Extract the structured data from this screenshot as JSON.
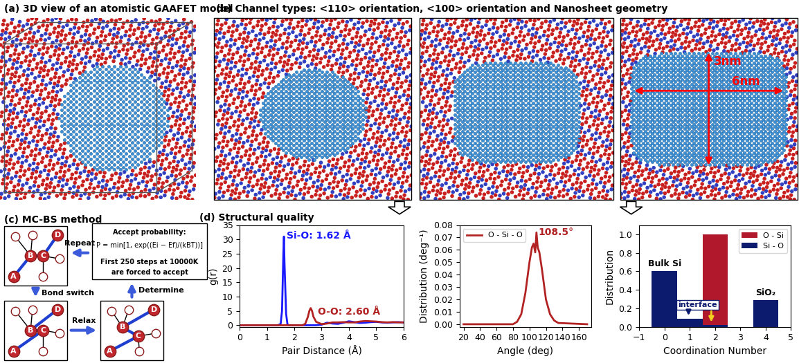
{
  "panels": {
    "a": {
      "title": "(a) 3D view of an atomistic GAAFET model"
    },
    "b": {
      "title": "(b) Channel types: <110> orientation, <100> orientation and Nanosheet geometry",
      "height": "3nm",
      "width": "6nm"
    },
    "c": {
      "title": "(c) MC-BS method",
      "atoms": [
        "A",
        "B",
        "C",
        "D"
      ],
      "steps": [
        "Repeat",
        "Bond switch",
        "Relax",
        "Determine"
      ],
      "rule": [
        "Accept probability:",
        "P = min[1, exp((Ei − Ef)/(kBT))]",
        "First 250 steps at 10000K",
        "are forced to accept"
      ]
    },
    "d": {
      "title": "(d) Structural quality"
    }
  },
  "chart_data": [
    {
      "type": "line",
      "xlabel": "Pair Distance (Å)",
      "ylabel": "g(r)",
      "x": [
        0,
        1.0,
        1.4,
        1.5,
        1.55,
        1.6,
        1.62,
        1.64,
        1.7,
        1.75,
        1.8,
        2.0,
        2.3,
        2.4,
        2.5,
        2.55,
        2.6,
        2.65,
        2.7,
        2.8,
        3.0,
        3.2,
        3.4,
        3.6,
        3.8,
        4.0,
        4.2,
        4.4,
        4.6,
        4.8,
        5.0,
        5.2,
        5.4,
        5.6,
        5.8,
        6.0
      ],
      "series": [
        {
          "color": "#1a1aff",
          "values": [
            0,
            0,
            0,
            0.5,
            5,
            25,
            31,
            22,
            4,
            0.3,
            0,
            0,
            0,
            0,
            0,
            0,
            0,
            0,
            0,
            0,
            0.2,
            0.9,
            0.6,
            0.5,
            0.9,
            1.4,
            1.1,
            0.8,
            0.9,
            1.1,
            1.2,
            1.0,
            0.9,
            1.0,
            1.1,
            1.0
          ]
        },
        {
          "color": "#b22222",
          "values": [
            0,
            0,
            0,
            0,
            0,
            0,
            0,
            0,
            0,
            0,
            0,
            0,
            0,
            0.5,
            3,
            5,
            6,
            5,
            3,
            1.2,
            0.4,
            0.6,
            1.0,
            1.0,
            1.1,
            1.0,
            1.0,
            1.3,
            1.5,
            1.4,
            1.3,
            1.1,
            1.0,
            1.1,
            1.0,
            1.0
          ]
        }
      ],
      "annotations": [
        "Si-O: 1.62 Å",
        "O-O: 2.60 Å"
      ],
      "xlim": [
        0,
        6
      ],
      "ylim": [
        -0.5,
        35
      ],
      "xticks": [
        0,
        1,
        2,
        3,
        4,
        5,
        6
      ],
      "yticks": [
        0,
        5,
        10,
        15,
        20,
        25,
        30,
        35
      ]
    },
    {
      "type": "line",
      "xlabel": "Angle (deg)",
      "ylabel": "Distribution (deg⁻¹)",
      "x": [
        20,
        80,
        85,
        90,
        95,
        100,
        103,
        105,
        107,
        108.5,
        110,
        112,
        115,
        118,
        120,
        125,
        130,
        135,
        170
      ],
      "series": [
        {
          "name": "O - Si - O",
          "color": "#b22222",
          "values": [
            0,
            0,
            0.002,
            0.008,
            0.025,
            0.05,
            0.062,
            0.065,
            0.058,
            0.074,
            0.062,
            0.058,
            0.045,
            0.03,
            0.02,
            0.008,
            0.003,
            0.001,
            0
          ]
        }
      ],
      "legend": "upper left",
      "annotations": [
        "108.5°"
      ],
      "xlim": [
        15,
        175
      ],
      "ylim": [
        -0.002,
        0.08
      ],
      "xticks": [
        20,
        40,
        60,
        80,
        100,
        120,
        140,
        160
      ],
      "yticks": [
        {
          "value": 0,
          "label": "0.00"
        },
        {
          "value": 0.01,
          "label": "0.01"
        },
        {
          "value": 0.02,
          "label": "0.02"
        },
        {
          "value": 0.03,
          "label": "0.03"
        },
        {
          "value": 0.04,
          "label": "0.04"
        },
        {
          "value": 0.05,
          "label": "0.05"
        },
        {
          "value": 0.06,
          "label": "0.06"
        },
        {
          "value": 0.07,
          "label": "0.07"
        },
        {
          "value": 0.08,
          "label": "0.08"
        }
      ]
    },
    {
      "type": "bar",
      "xlabel": "Coordination Number",
      "ylabel": "Distribution",
      "x": [
        0,
        1,
        2,
        3,
        4
      ],
      "series": [
        {
          "name": "O - Si",
          "color": "#b2182b",
          "values": [
            0,
            0,
            1.0,
            0,
            0
          ]
        },
        {
          "name": "Si - O",
          "color": "#0d1b6e",
          "values": [
            0.6,
            0.085,
            0.015,
            0,
            0.29
          ]
        }
      ],
      "legend": "upper right",
      "annotations": [
        "Bulk Si",
        "interface",
        "SiO₂"
      ],
      "xlim": [
        -1,
        5
      ],
      "ylim": [
        0,
        1.1
      ],
      "xticks": [
        {
          "value": -1,
          "label": "−1"
        },
        0,
        1,
        2,
        3,
        4,
        5
      ],
      "yticks": [
        {
          "value": 0,
          "label": "0.0"
        },
        {
          "value": 0.2,
          "label": "0.2"
        },
        {
          "value": 0.4,
          "label": "0.4"
        },
        {
          "value": 0.6,
          "label": "0.6"
        },
        {
          "value": 0.8,
          "label": "0.8"
        },
        {
          "value": 1.0,
          "label": "1.0"
        }
      ]
    }
  ]
}
